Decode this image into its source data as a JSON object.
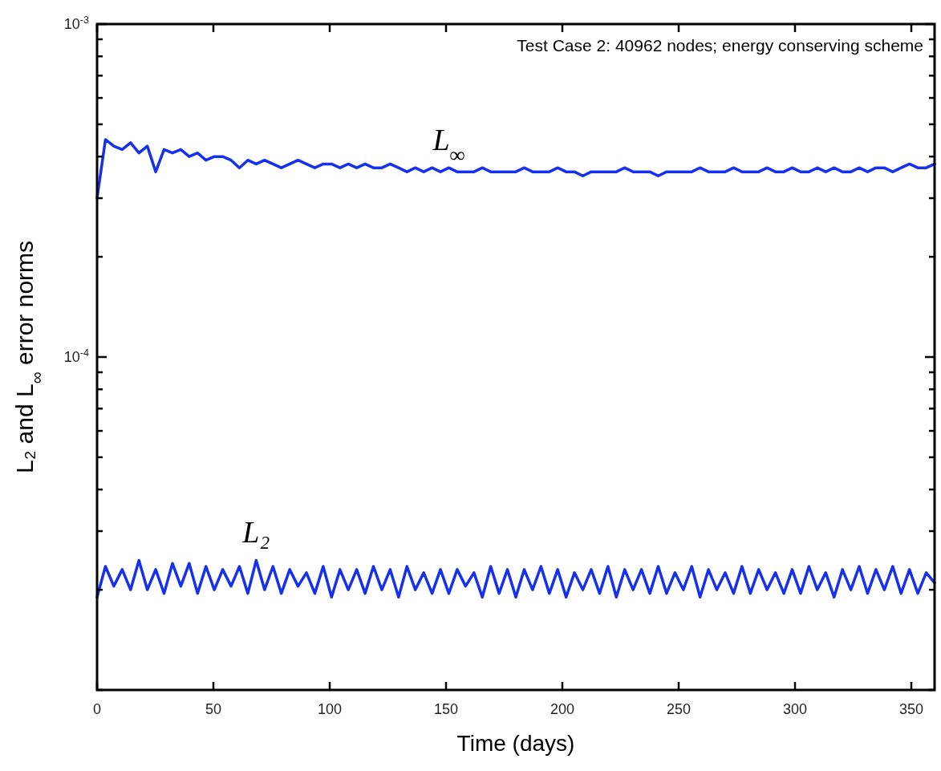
{
  "chart_data": {
    "type": "line",
    "xlabel": "Time (days)",
    "ylabel": "L₂ and L$_{∞}$ error norms",
    "annotations": [
      "Test Case 2: 40962 nodes; energy conserving scheme"
    ],
    "log": "y",
    "grid": false,
    "marker": "none",
    "line_style": "solid",
    "xlim": [
      0,
      360
    ],
    "xticks": [
      0,
      50,
      100,
      150,
      200,
      250,
      300,
      350
    ],
    "ylim": [
      1e-05,
      0.001
    ],
    "yticks": [
      {
        "value": 1e-05,
        "label": null
      },
      {
        "value": 2e-05,
        "label": null
      },
      {
        "value": 3e-05,
        "label": null
      },
      {
        "value": 4e-05,
        "label": null
      },
      {
        "value": 5e-05,
        "label": null
      },
      {
        "value": 6e-05,
        "label": null
      },
      {
        "value": 7e-05,
        "label": null
      },
      {
        "value": 8e-05,
        "label": null
      },
      {
        "value": 9e-05,
        "label": null
      },
      {
        "value": 0.0001,
        "label": "10$^{-4}$"
      },
      {
        "value": 0.0002,
        "label": null
      },
      {
        "value": 0.0003,
        "label": null
      },
      {
        "value": 0.0004,
        "label": null
      },
      {
        "value": 0.0005,
        "label": null
      },
      {
        "value": 0.0006,
        "label": null
      },
      {
        "value": 0.0007,
        "label": null
      },
      {
        "value": 0.0008,
        "label": null
      },
      {
        "value": 0.0009,
        "label": null
      },
      {
        "value": 0.001,
        "label": "10$^{-3}$"
      }
    ],
    "x": [
      0,
      3.6,
      7.2,
      10.8,
      14.4,
      18,
      21.6,
      25.2,
      28.8,
      32.4,
      36,
      39.6,
      43.2,
      46.8,
      50.4,
      54,
      57.6,
      61.2,
      64.8,
      68.4,
      72,
      75.6,
      79.2,
      82.8,
      86.4,
      90,
      93.6,
      97.2,
      100.8,
      104.4,
      108,
      111.6,
      115.2,
      118.8,
      122.4,
      126,
      129.6,
      133.2,
      136.8,
      140.4,
      144,
      147.6,
      151.2,
      154.8,
      158.4,
      162,
      165.6,
      169.2,
      172.8,
      176.4,
      180,
      183.6,
      187.2,
      190.8,
      194.4,
      198,
      201.6,
      205.2,
      208.8,
      212.4,
      216,
      219.6,
      223.2,
      226.8,
      230.4,
      234,
      237.6,
      241.2,
      244.8,
      248.4,
      252,
      255.6,
      259.2,
      262.8,
      266.4,
      270,
      273.6,
      277.2,
      280.8,
      284.4,
      288,
      291.6,
      295.2,
      298.8,
      302.4,
      306,
      309.6,
      313.2,
      316.8,
      320.4,
      324,
      327.6,
      331.2,
      334.8,
      338.4,
      342,
      345.6,
      349.2,
      352.8,
      356.4,
      360
    ],
    "series": [
      {
        "name": "L$_{∞}$",
        "color": "#1530ee",
        "values": [
          0.0003,
          0.00045,
          0.00043,
          0.00042,
          0.00044,
          0.00041,
          0.00043,
          0.00036,
          0.00042,
          0.00041,
          0.00042,
          0.0004,
          0.00041,
          0.00039,
          0.0004,
          0.0004,
          0.00039,
          0.00037,
          0.00039,
          0.00038,
          0.00039,
          0.00038,
          0.00037,
          0.00038,
          0.00039,
          0.00038,
          0.00037,
          0.00038,
          0.00038,
          0.00037,
          0.00038,
          0.00037,
          0.00038,
          0.00037,
          0.00037,
          0.00038,
          0.00037,
          0.00036,
          0.00037,
          0.00036,
          0.00037,
          0.00036,
          0.00037,
          0.00036,
          0.00036,
          0.00036,
          0.00037,
          0.00036,
          0.00036,
          0.00036,
          0.00036,
          0.00037,
          0.00036,
          0.00036,
          0.00036,
          0.00037,
          0.00036,
          0.00036,
          0.00035,
          0.00036,
          0.00036,
          0.00036,
          0.00036,
          0.00037,
          0.00036,
          0.00036,
          0.00036,
          0.00035,
          0.00036,
          0.00036,
          0.00036,
          0.00036,
          0.00037,
          0.00036,
          0.00036,
          0.00036,
          0.00037,
          0.00036,
          0.00036,
          0.00036,
          0.00037,
          0.00036,
          0.00036,
          0.00037,
          0.00036,
          0.00036,
          0.00037,
          0.00036,
          0.00037,
          0.00036,
          0.00036,
          0.00037,
          0.00036,
          0.00037,
          0.00037,
          0.00036,
          0.00037,
          0.00038,
          0.00037,
          0.00037,
          0.00038
        ]
      },
      {
        "name": "L₂",
        "color": "#1530ee",
        "values": [
          1.9e-05,
          2.35e-05,
          2.05e-05,
          2.3e-05,
          2e-05,
          2.45e-05,
          2e-05,
          2.3e-05,
          1.95e-05,
          2.4e-05,
          2.05e-05,
          2.4e-05,
          1.95e-05,
          2.35e-05,
          2e-05,
          2.3e-05,
          2.05e-05,
          2.35e-05,
          1.95e-05,
          2.45e-05,
          2e-05,
          2.35e-05,
          1.95e-05,
          2.3e-05,
          2.05e-05,
          2.25e-05,
          1.95e-05,
          2.35e-05,
          1.9e-05,
          2.3e-05,
          2e-05,
          2.3e-05,
          1.95e-05,
          2.35e-05,
          2e-05,
          2.3e-05,
          1.9e-05,
          2.35e-05,
          2e-05,
          2.25e-05,
          1.95e-05,
          2.3e-05,
          1.95e-05,
          2.3e-05,
          2.05e-05,
          2.25e-05,
          1.9e-05,
          2.35e-05,
          1.95e-05,
          2.3e-05,
          1.9e-05,
          2.3e-05,
          2e-05,
          2.35e-05,
          1.95e-05,
          2.3e-05,
          1.9e-05,
          2.25e-05,
          2e-05,
          2.3e-05,
          1.95e-05,
          2.35e-05,
          1.9e-05,
          2.3e-05,
          2e-05,
          2.3e-05,
          1.95e-05,
          2.35e-05,
          1.95e-05,
          2.25e-05,
          2e-05,
          2.35e-05,
          1.9e-05,
          2.3e-05,
          2e-05,
          2.25e-05,
          1.95e-05,
          2.35e-05,
          1.95e-05,
          2.3e-05,
          2e-05,
          2.25e-05,
          1.95e-05,
          2.3e-05,
          1.95e-05,
          2.35e-05,
          2e-05,
          2.25e-05,
          1.9e-05,
          2.3e-05,
          2e-05,
          2.35e-05,
          1.95e-05,
          2.3e-05,
          2e-05,
          2.35e-05,
          1.95e-05,
          2.3e-05,
          1.95e-05,
          2.25e-05,
          2.1e-05
        ]
      }
    ]
  }
}
